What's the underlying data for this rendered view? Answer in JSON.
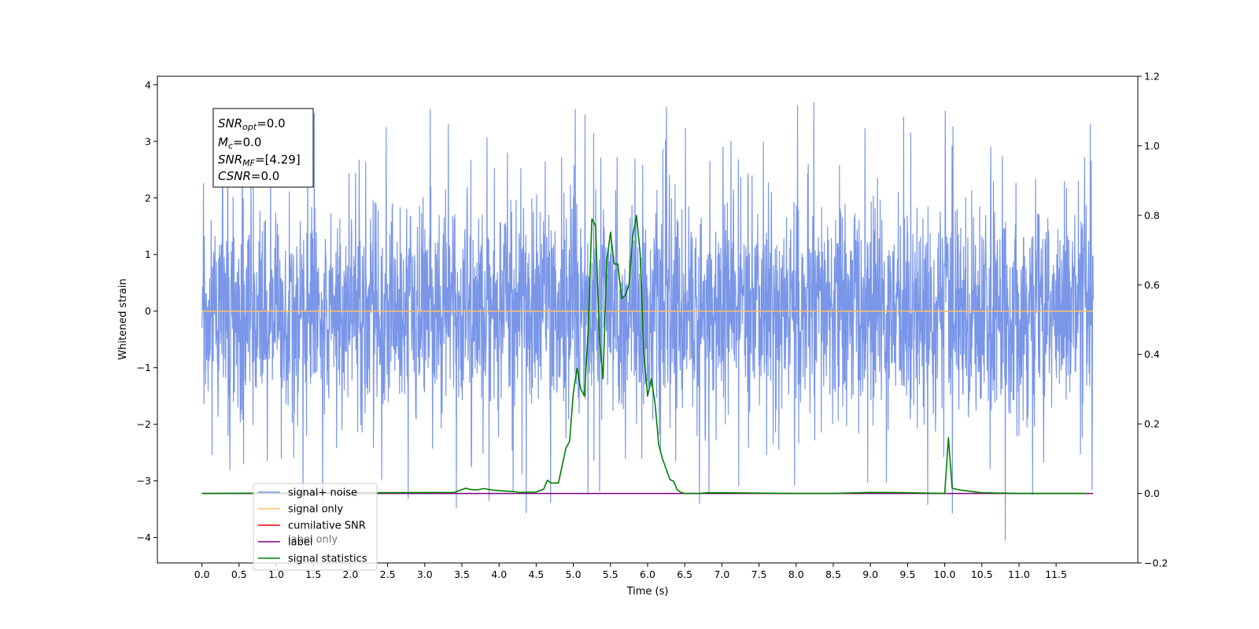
{
  "chart_data": {
    "type": "line",
    "x_axis": {
      "label": "Time (s)",
      "range": [
        -0.6,
        12.6
      ],
      "ticks": [
        0.0,
        0.5,
        1.0,
        1.5,
        2.0,
        2.5,
        3.0,
        3.5,
        4.0,
        4.5,
        5.0,
        5.5,
        6.0,
        6.5,
        7.0,
        7.5,
        8.0,
        8.5,
        9.0,
        9.5,
        10.0,
        10.5,
        11.0,
        11.5
      ],
      "tick_labels": [
        "0.0",
        "0.5",
        "1.0",
        "1.5",
        "2.0",
        "2.5",
        "3.0",
        "3.5",
        "4.0",
        "4.5",
        "5.0",
        "5.5",
        "6.0",
        "6.5",
        "7.0",
        "7.5",
        "8.0",
        "8.5",
        "9.0",
        "9.5",
        "10.0",
        "10.5",
        "11.0",
        "11.5"
      ]
    },
    "y_axis_left": {
      "label": "Whitened strain",
      "range": [
        -4.45,
        4.15
      ],
      "ticks": [
        -4,
        -3,
        -2,
        -1,
        0,
        1,
        2,
        3,
        4
      ],
      "tick_labels": [
        "−4",
        "−3",
        "−2",
        "−1",
        "0",
        "1",
        "2",
        "3",
        "4"
      ]
    },
    "y_axis_right": {
      "range": [
        -0.2,
        1.2
      ],
      "ticks": [
        -0.2,
        0.0,
        0.2,
        0.4,
        0.6,
        0.8,
        1.0,
        1.2
      ],
      "tick_labels": [
        "−0.2",
        "0.0",
        "0.2",
        "0.4",
        "0.6",
        "0.8",
        "1.0",
        "1.2"
      ]
    },
    "grid": false,
    "legend_position": "lower-left",
    "series": [
      {
        "name": "signal+ noise",
        "axis": "left",
        "color": "#7a96e8",
        "note": "dense whitened noise trace, approx. zero-mean, amplitude within about ±2 with spikes to ±3.7",
        "x_range": [
          0.0,
          12.0
        ],
        "seed": 7,
        "sample_count": 3000
      },
      {
        "name": "signal only",
        "axis": "left",
        "color": "#ffbf66",
        "x": [
          0.0,
          12.0
        ],
        "y": [
          0.0,
          0.0
        ]
      },
      {
        "name": "cumilative SNR",
        "axis": "right",
        "color": "#ff0000",
        "x": [],
        "y": []
      },
      {
        "name": "label",
        "axis": "right",
        "color": "#800080",
        "x": [
          0.0,
          12.0
        ],
        "y": [
          0.0,
          0.0
        ]
      },
      {
        "name": "signal statistics",
        "axis": "right",
        "color": "#008000",
        "x": [
          0.0,
          3.4,
          3.55,
          3.6,
          3.7,
          3.8,
          3.9,
          4.0,
          4.2,
          4.3,
          4.5,
          4.6,
          4.65,
          4.7,
          4.8,
          4.9,
          4.95,
          5.0,
          5.05,
          5.1,
          5.15,
          5.2,
          5.25,
          5.3,
          5.35,
          5.4,
          5.45,
          5.5,
          5.55,
          5.6,
          5.65,
          5.7,
          5.75,
          5.8,
          5.85,
          5.9,
          5.95,
          6.0,
          6.05,
          6.1,
          6.15,
          6.2,
          6.25,
          6.3,
          6.35,
          6.4,
          6.45,
          6.5,
          6.55,
          6.6,
          6.7,
          6.8,
          6.9,
          7.0,
          7.5,
          8.0,
          8.5,
          9.0,
          9.5,
          10.0,
          10.05,
          10.1,
          10.2,
          10.5,
          11.0,
          11.9
        ],
        "y": [
          0.0,
          0.003,
          0.015,
          0.012,
          0.01,
          0.014,
          0.01,
          0.008,
          0.005,
          0.003,
          0.004,
          0.012,
          0.038,
          0.03,
          0.03,
          0.13,
          0.15,
          0.29,
          0.36,
          0.3,
          0.28,
          0.47,
          0.79,
          0.77,
          0.45,
          0.33,
          0.67,
          0.75,
          0.66,
          0.66,
          0.56,
          0.57,
          0.6,
          0.74,
          0.8,
          0.69,
          0.4,
          0.28,
          0.33,
          0.26,
          0.14,
          0.1,
          0.07,
          0.04,
          0.035,
          0.01,
          0.003,
          0.0,
          0.0,
          0.0,
          0.0,
          0.002,
          0.002,
          0.002,
          0.001,
          0.0,
          0.0,
          0.003,
          0.002,
          0.0,
          0.16,
          0.015,
          0.01,
          0.002,
          0.0,
          0.0
        ]
      }
    ],
    "legend_entries": [
      {
        "label": "signal+ noise",
        "color": "#7a96e8"
      },
      {
        "label": "signal only",
        "color": "#ffbf66"
      },
      {
        "label": "cumilative SNR",
        "color": "#ff0000"
      },
      {
        "label": "label",
        "color": "#800080"
      },
      {
        "label": "signal statistics",
        "color": "#008000"
      }
    ],
    "stats_box": {
      "lines": [
        {
          "main": "SNR",
          "sub": "opt",
          "value": "=0.0"
        },
        {
          "main": "M",
          "sub": "c",
          "value": "=0.0"
        },
        {
          "main": "SNR",
          "sub": "MF",
          "value": "=[4.29]"
        },
        {
          "main": "CSNR",
          "sub": "",
          "value": "=0.0"
        }
      ]
    },
    "hidden_legend_text": "label only"
  }
}
